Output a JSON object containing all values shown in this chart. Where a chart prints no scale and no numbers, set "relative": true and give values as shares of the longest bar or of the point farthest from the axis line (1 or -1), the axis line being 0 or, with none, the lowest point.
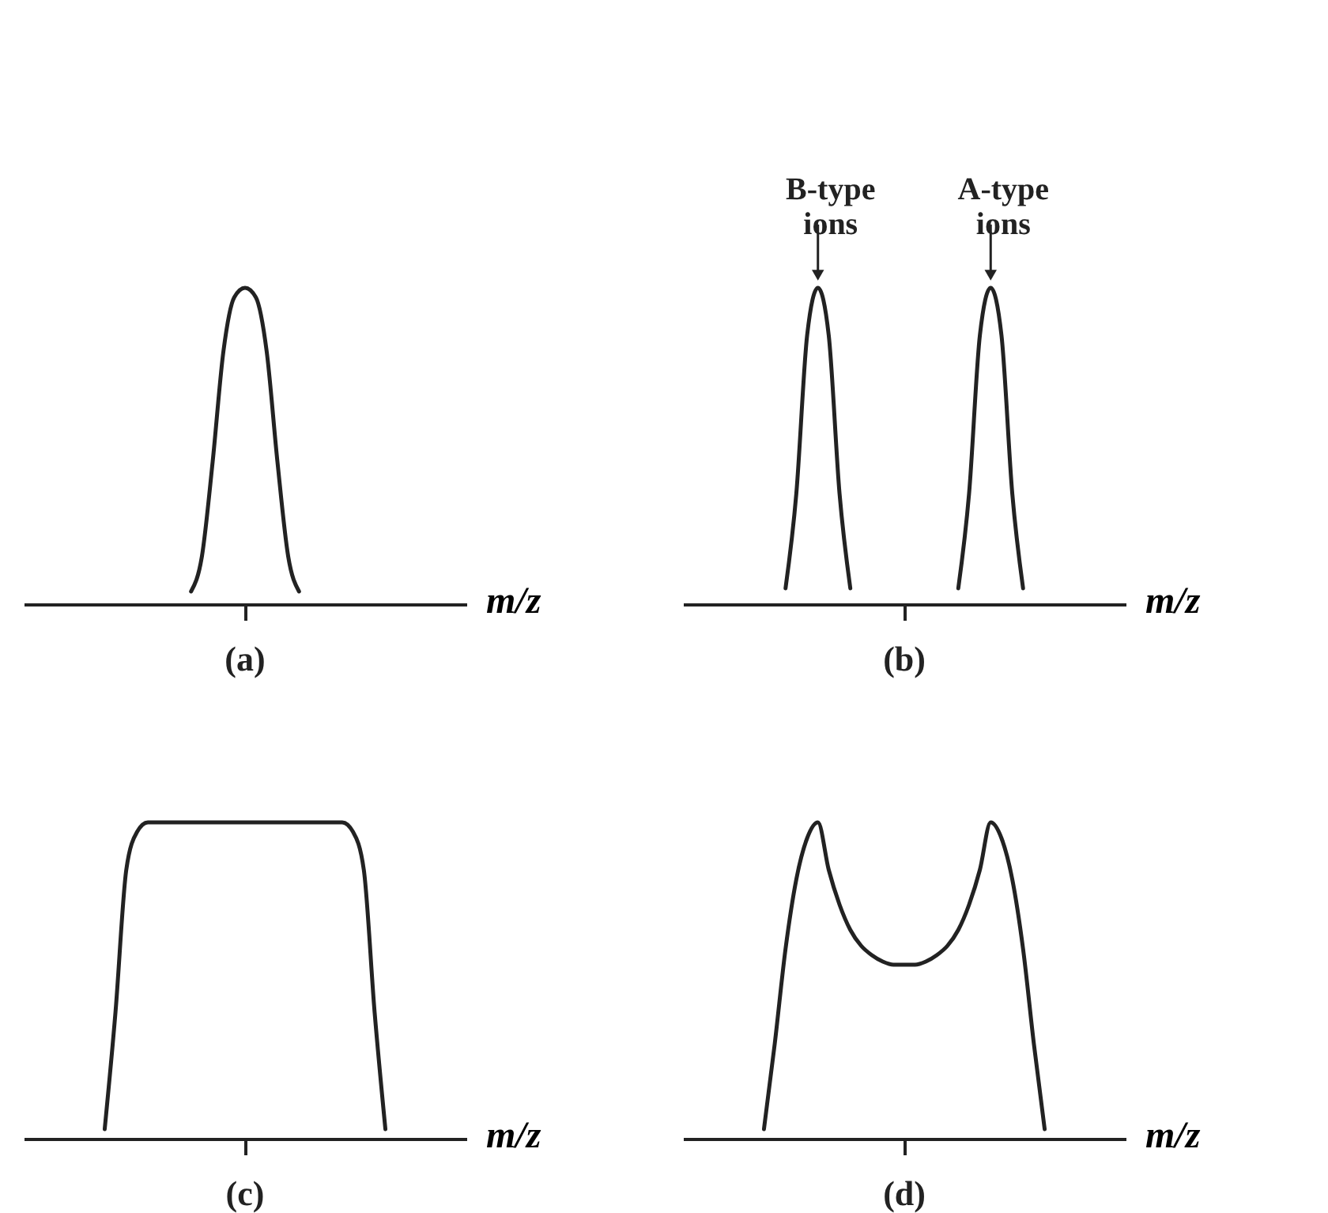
{
  "chart_data": [
    {
      "type": "line",
      "relative": true,
      "title": "(a)",
      "xlabel": "m/z",
      "categories": [
        null,
        null,
        null,
        null,
        null,
        null,
        null,
        null,
        null,
        null,
        null,
        null,
        null,
        null,
        null,
        null,
        null,
        null,
        null,
        null,
        null,
        null,
        null,
        null,
        null,
        null,
        null,
        null,
        null,
        null,
        null,
        null,
        null,
        null,
        null,
        null,
        null,
        null,
        null,
        null,
        null
      ],
      "series": [
        {
          "color": "#222222",
          "values": [
            null,
            null,
            null,
            null,
            null,
            null,
            null,
            null,
            null,
            null,
            null,
            null,
            null,
            null,
            null,
            0.04,
            0.15,
            0.45,
            0.8,
            0.97,
            1,
            0.97,
            0.8,
            0.45,
            0.15,
            0.04,
            null,
            null,
            null,
            null,
            null,
            null,
            null,
            null,
            null,
            null,
            null,
            null,
            null,
            null,
            null
          ]
        }
      ]
    },
    {
      "type": "line",
      "relative": true,
      "title": "(b)",
      "xlabel": "m/z",
      "annotations": [
        "B-type ions",
        "A-type ions"
      ],
      "categories": [
        null,
        null,
        null,
        null,
        null,
        null,
        null,
        null,
        null,
        null,
        null,
        null,
        null,
        null,
        null,
        null,
        null,
        null,
        null,
        null,
        null,
        null,
        null,
        null,
        null,
        null,
        null,
        null,
        null,
        null,
        null,
        null,
        null,
        null,
        null,
        null,
        null,
        null,
        null,
        null,
        null
      ],
      "series": [
        {
          "color": "#222222",
          "values": [
            null,
            null,
            null,
            null,
            null,
            null,
            null,
            null,
            null,
            0.05,
            0.35,
            0.85,
            1,
            0.85,
            0.35,
            0.05,
            null,
            null,
            null,
            null,
            null,
            null,
            null,
            null,
            null,
            null,
            null,
            null,
            null,
            null,
            null,
            null,
            null,
            null,
            null,
            null,
            null,
            null,
            null,
            null,
            null
          ]
        },
        {
          "color": "#222222",
          "values": [
            null,
            null,
            null,
            null,
            null,
            null,
            null,
            null,
            null,
            null,
            null,
            null,
            null,
            null,
            null,
            null,
            null,
            null,
            null,
            null,
            null,
            null,
            null,
            null,
            null,
            0.05,
            0.35,
            0.85,
            1,
            0.85,
            0.35,
            0.05,
            null,
            null,
            null,
            null,
            null,
            null,
            null,
            null,
            null
          ]
        }
      ]
    },
    {
      "type": "line",
      "relative": true,
      "title": "(c)",
      "xlabel": "m/z",
      "categories": [
        null,
        null,
        null,
        null,
        null,
        null,
        null,
        null,
        null,
        null,
        null,
        null,
        null,
        null,
        null,
        null,
        null,
        null,
        null,
        null,
        null,
        null,
        null,
        null,
        null,
        null,
        null,
        null,
        null,
        null,
        null,
        null,
        null,
        null,
        null,
        null,
        null,
        null,
        null,
        null,
        null
      ],
      "series": [
        {
          "color": "#222222",
          "values": [
            null,
            null,
            null,
            null,
            null,
            null,
            null,
            0.03,
            0.4,
            0.85,
            0.97,
            1,
            1,
            1,
            1,
            1,
            1,
            1,
            1,
            1,
            1,
            1,
            1,
            1,
            1,
            1,
            1,
            1,
            1,
            1,
            0.97,
            0.85,
            0.4,
            0.03,
            null,
            null,
            null,
            null,
            null,
            null,
            null
          ]
        }
      ]
    },
    {
      "type": "line",
      "relative": true,
      "title": "(d)",
      "xlabel": "m/z",
      "categories": [
        null,
        null,
        null,
        null,
        null,
        null,
        null,
        null,
        null,
        null,
        null,
        null,
        null,
        null,
        null,
        null,
        null,
        null,
        null,
        null,
        null,
        null,
        null,
        null,
        null,
        null,
        null,
        null,
        null,
        null,
        null,
        null,
        null,
        null,
        null,
        null,
        null,
        null,
        null,
        null,
        null
      ],
      "series": [
        {
          "color": "#222222",
          "values": [
            null,
            null,
            null,
            null,
            null,
            null,
            null,
            0.03,
            0.3,
            0.6,
            0.82,
            0.95,
            1,
            0.85,
            0.74,
            0.66,
            0.61,
            0.58,
            0.56,
            0.55,
            0.55,
            0.55,
            0.56,
            0.58,
            0.61,
            0.66,
            0.74,
            0.85,
            1,
            0.95,
            0.82,
            0.6,
            0.3,
            0.03,
            null,
            null,
            null,
            null,
            null,
            null,
            null
          ]
        }
      ]
    }
  ]
}
